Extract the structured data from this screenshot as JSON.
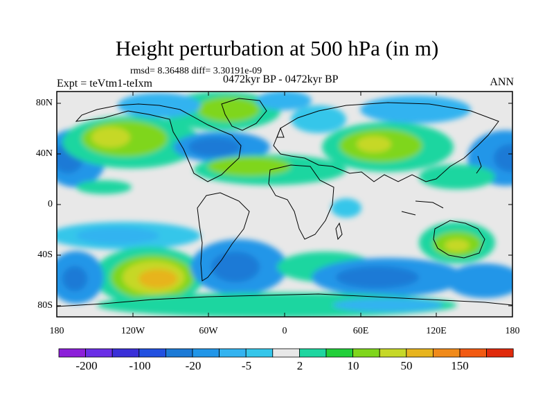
{
  "title": "Height perturbation at 500 hPa (in m)",
  "stats": "rmsd= 8.36488 diff= 3.30191e-09",
  "experiment": "Expt = teVtm1-teIxm",
  "period": "0472kyr BP - 0472kyr BP",
  "season": "ANN",
  "lat_labels": [
    "80N",
    "40N",
    "0",
    "40S",
    "80S"
  ],
  "lon_labels": [
    "180",
    "120W",
    "60W",
    "0",
    "60E",
    "120E",
    "180"
  ],
  "colorbar": {
    "colors": [
      "#8c1fd9",
      "#6a2ee6",
      "#3a2fd8",
      "#2250e0",
      "#1c7ad6",
      "#2196e8",
      "#33b3f0",
      "#35c6ea",
      "#e8e8e8",
      "#1ed6a0",
      "#22cf3a",
      "#7fd61c",
      "#c6d828",
      "#e7b41e",
      "#f08a1a",
      "#f25a12",
      "#e02a0c"
    ],
    "labels": [
      "-200",
      "-100",
      "-20",
      "-5",
      "2",
      "10",
      "50",
      "150"
    ]
  },
  "chart_data": {
    "type": "map",
    "title": "Height perturbation at 500 hPa (in m)",
    "projection": "cylindrical equidistant",
    "lon_range": [
      -180,
      180
    ],
    "lat_range": [
      -90,
      90
    ],
    "contour_levels": [
      -200,
      -150,
      -100,
      -50,
      -20,
      -10,
      -5,
      -2,
      2,
      5,
      10,
      20,
      50,
      100,
      150,
      200
    ],
    "features": [
      {
        "region": "North Pacific (~40N, 180-150W)",
        "sign": "negative",
        "approx_value": -20
      },
      {
        "region": "North Pacific (~50N, 150W-120W)",
        "sign": "positive",
        "approx_value": 20
      },
      {
        "region": "Greenland / Baffin (~75N, 60W)",
        "sign": "positive",
        "approx_value": 10
      },
      {
        "region": "Eastern North America (~50N, 70W)",
        "sign": "negative",
        "approx_value": -20
      },
      {
        "region": "Eurasia (~50N, 60E)",
        "sign": "positive",
        "approx_value": 20
      },
      {
        "region": "Western Europe (~55N, 0)",
        "sign": "negative",
        "approx_value": -5
      },
      {
        "region": "Australia (~30S, 130E)",
        "sign": "positive",
        "approx_value": 20
      },
      {
        "region": "South Pacific (~60S, 110W)",
        "sign": "positive",
        "approx_value": 50
      },
      {
        "region": "South Atlantic (~50S, 30W)",
        "sign": "negative",
        "approx_value": -20
      },
      {
        "region": "Southern Ocean (~50S, 60E)",
        "sign": "negative",
        "approx_value": -10
      }
    ]
  }
}
